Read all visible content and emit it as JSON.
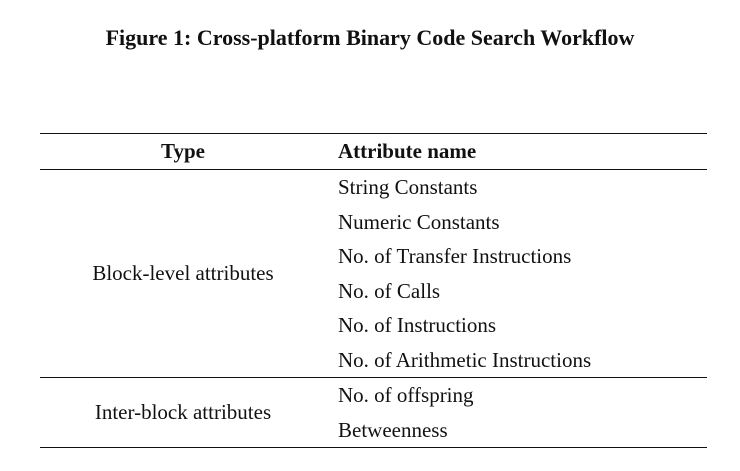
{
  "caption": "Figure 1: Cross-platform Binary Code Search Workflow",
  "table": {
    "headers": {
      "type": "Type",
      "attribute": "Attribute name"
    },
    "groups": [
      {
        "type": "Block-level attributes",
        "attributes": [
          "String Constants",
          "Numeric Constants",
          "No. of Transfer Instructions",
          "No. of Calls",
          "No. of Instructions",
          "No. of Arithmetic Instructions"
        ]
      },
      {
        "type": "Inter-block attributes",
        "attributes": [
          "No. of offspring",
          "Betweenness"
        ]
      }
    ]
  }
}
